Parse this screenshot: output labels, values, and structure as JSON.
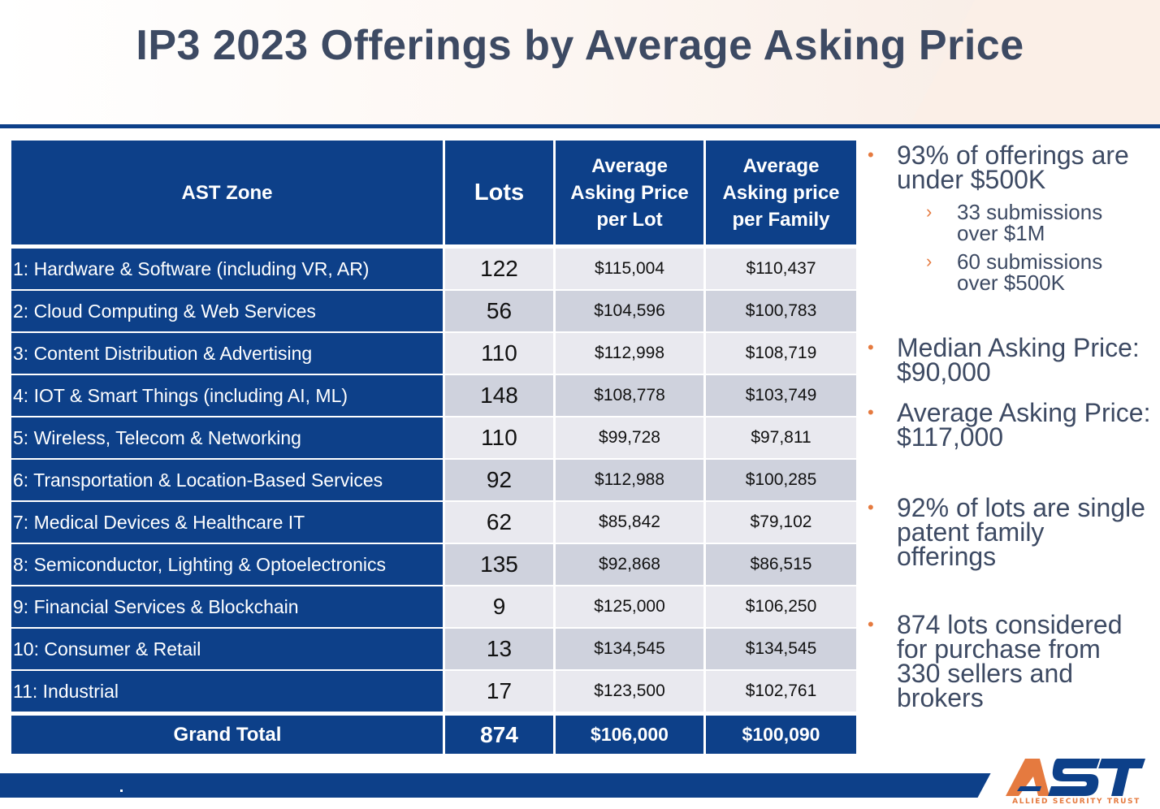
{
  "title": "IP3 2023 Offerings by Average Asking Price",
  "table": {
    "headers": {
      "zone": "AST Zone",
      "lots": "Lots",
      "lot_price": [
        "Average",
        "Asking Price",
        "per Lot"
      ],
      "family_price": [
        "Average",
        "Asking price",
        "per Family"
      ]
    },
    "rows": [
      {
        "zone": "1: Hardware & Software (including VR, AR)",
        "lots": "122",
        "lot_price": "$115,004",
        "family_price": "$110,437"
      },
      {
        "zone": "2: Cloud Computing & Web Services",
        "lots": "56",
        "lot_price": "$104,596",
        "family_price": "$100,783"
      },
      {
        "zone": "3: Content Distribution & Advertising",
        "lots": "110",
        "lot_price": "$112,998",
        "family_price": "$108,719"
      },
      {
        "zone": "4: IOT & Smart Things (including AI, ML)",
        "lots": "148",
        "lot_price": "$108,778",
        "family_price": "$103,749"
      },
      {
        "zone": "5: Wireless, Telecom & Networking",
        "lots": "110",
        "lot_price": "$99,728",
        "family_price": "$97,811"
      },
      {
        "zone": "6: Transportation & Location-Based Services",
        "lots": "92",
        "lot_price": "$112,988",
        "family_price": "$100,285"
      },
      {
        "zone": "7: Medical Devices & Healthcare IT",
        "lots": "62",
        "lot_price": "$85,842",
        "family_price": "$79,102"
      },
      {
        "zone": "8: Semiconductor, Lighting & Optoelectronics",
        "lots": "135",
        "lot_price": "$92,868",
        "family_price": "$86,515"
      },
      {
        "zone": "9: Financial Services & Blockchain",
        "lots": "9",
        "lot_price": "$125,000",
        "family_price": "$106,250"
      },
      {
        "zone": "10: Consumer & Retail",
        "lots": "13",
        "lot_price": "$134,545",
        "family_price": "$134,545"
      },
      {
        "zone": "11: Industrial",
        "lots": "17",
        "lot_price": "$123,500",
        "family_price": "$102,761"
      }
    ],
    "total": {
      "zone": "Grand Total",
      "lots": "874",
      "lot_price": "$106,000",
      "family_price": "$100,090"
    }
  },
  "bullets": [
    {
      "text": [
        "93% of offerings are",
        "under $500K"
      ],
      "sub": [
        [
          "33 submissions",
          "over $1M"
        ],
        [
          "60 submissions",
          "over $500K"
        ]
      ]
    },
    {
      "text": [
        "Median Asking Price:",
        "$90,000"
      ]
    },
    {
      "text": [
        "Average Asking Price:",
        "$117,000"
      ]
    },
    {
      "text": [
        "92% of lots are single",
        "patent family",
        "offerings"
      ]
    },
    {
      "text": [
        "874 lots considered",
        "for purchase from",
        "330 sellers and",
        "brokers"
      ]
    }
  ],
  "logo": {
    "mark": "AST",
    "subtitle": "ALLIED SECURITY TRUST"
  },
  "colors": {
    "brand_blue": "#0d4089",
    "accent_orange": "#e57a3f",
    "title_gray": "#3d4a63"
  },
  "icons": {
    "bullet": "orange-dot-bullet",
    "sub_bullet": "orange-chevron-bullet"
  }
}
